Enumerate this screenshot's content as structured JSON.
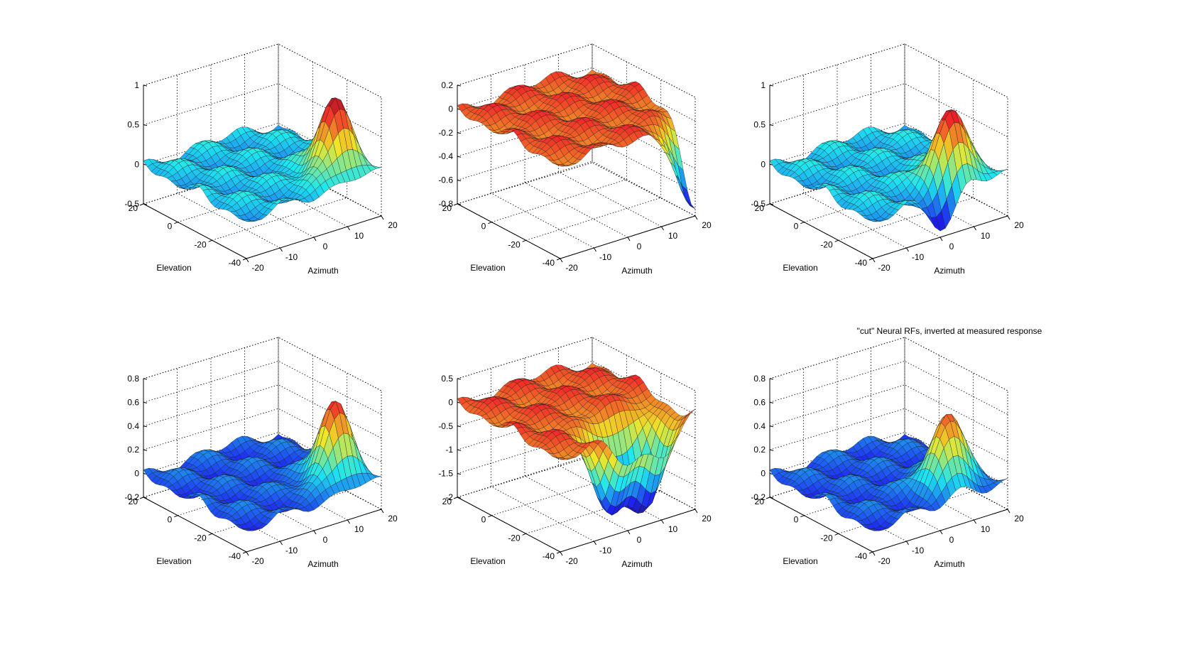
{
  "figure": {
    "annotation": "\"cut\" Neural RFs, inverted at measured response"
  },
  "chart_data": [
    {
      "type": "surface",
      "xlabel": "Azimuth",
      "ylabel": "Elevation",
      "zlabel": "",
      "xticks": [
        "-20",
        "-10",
        "0",
        "10",
        "20"
      ],
      "yticks": [
        "-40",
        "-20",
        "0",
        "20"
      ],
      "zticks": [
        "-0.5",
        "0",
        "0.5",
        "1"
      ],
      "xlim": [
        -20,
        20
      ],
      "ylim": [
        -40,
        20
      ],
      "zlim": [
        -0.5,
        1
      ],
      "colormap": "jet",
      "grid": true,
      "peaks": [
        {
          "azimuth": 12,
          "elevation": -28,
          "value": 0.9
        }
      ]
    },
    {
      "type": "surface",
      "xlabel": "Azimuth",
      "ylabel": "Elevation",
      "zlabel": "",
      "xticks": [
        "-20",
        "-10",
        "0",
        "10",
        "20"
      ],
      "yticks": [
        "-40",
        "-20",
        "0",
        "20"
      ],
      "zticks": [
        "-0.8",
        "-0.6",
        "-0.4",
        "-0.2",
        "0",
        "0.2"
      ],
      "xlim": [
        -20,
        20
      ],
      "ylim": [
        -40,
        20
      ],
      "zlim": [
        -0.8,
        0.2
      ],
      "colormap": "jet",
      "grid": true,
      "peaks": [
        {
          "azimuth": 20,
          "elevation": -40,
          "value": -0.8
        }
      ]
    },
    {
      "type": "surface",
      "xlabel": "Azimuth",
      "ylabel": "Elevation",
      "zlabel": "",
      "xticks": [
        "-20",
        "-10",
        "0",
        "10",
        "20"
      ],
      "yticks": [
        "-40",
        "-20",
        "0",
        "20"
      ],
      "zticks": [
        "-0.5",
        "0",
        "0.5",
        "1"
      ],
      "xlim": [
        -20,
        20
      ],
      "ylim": [
        -40,
        20
      ],
      "zlim": [
        -0.5,
        1
      ],
      "colormap": "jet",
      "grid": true,
      "peaks": [
        {
          "azimuth": 8,
          "elevation": -30,
          "value": 0.95
        },
        {
          "azimuth": 2,
          "elevation": -42,
          "value": -0.5
        }
      ]
    },
    {
      "type": "surface",
      "xlabel": "Azimuth",
      "ylabel": "Elevation",
      "zlabel": "",
      "xticks": [
        "-20",
        "-10",
        "0",
        "10",
        "20"
      ],
      "yticks": [
        "-40",
        "-20",
        "0",
        "20"
      ],
      "zticks": [
        "-0.2",
        "0",
        "0.2",
        "0.4",
        "0.6",
        "0.8"
      ],
      "xlim": [
        -20,
        20
      ],
      "ylim": [
        -40,
        20
      ],
      "zlim": [
        -0.2,
        0.8
      ],
      "colormap": "jet",
      "grid": true,
      "peaks": [
        {
          "azimuth": 12,
          "elevation": -28,
          "value": 0.65
        }
      ]
    },
    {
      "type": "surface",
      "xlabel": "Azimuth",
      "ylabel": "Elevation",
      "zlabel": "",
      "xticks": [
        "-20",
        "-10",
        "0",
        "10",
        "20"
      ],
      "yticks": [
        "-40",
        "-20",
        "0",
        "20"
      ],
      "zticks": [
        "-2",
        "-1.5",
        "-1",
        "-0.5",
        "0",
        "0.5"
      ],
      "xlim": [
        -20,
        20
      ],
      "ylim": [
        -40,
        20
      ],
      "zlim": [
        -2,
        0.5
      ],
      "colormap": "jet",
      "grid": true,
      "peaks": [
        {
          "azimuth": 0,
          "elevation": -30,
          "value": -1.8
        },
        {
          "azimuth": 10,
          "elevation": -30,
          "value": -1.9
        }
      ]
    },
    {
      "type": "surface",
      "title": "\"cut\" Neural RFs, inverted at measured response",
      "xlabel": "Azimuth",
      "ylabel": "Elevation",
      "zlabel": "",
      "xticks": [
        "-20",
        "-10",
        "0",
        "10",
        "20"
      ],
      "yticks": [
        "-40",
        "-20",
        "0",
        "20"
      ],
      "zticks": [
        "-0.2",
        "0",
        "0.2",
        "0.4",
        "0.6",
        "0.8"
      ],
      "xlim": [
        -20,
        20
      ],
      "ylim": [
        -40,
        20
      ],
      "zlim": [
        -0.2,
        0.8
      ],
      "colormap": "jet",
      "grid": true,
      "peaks": [
        {
          "azimuth": 8,
          "elevation": -28,
          "value": 0.65
        }
      ]
    }
  ]
}
